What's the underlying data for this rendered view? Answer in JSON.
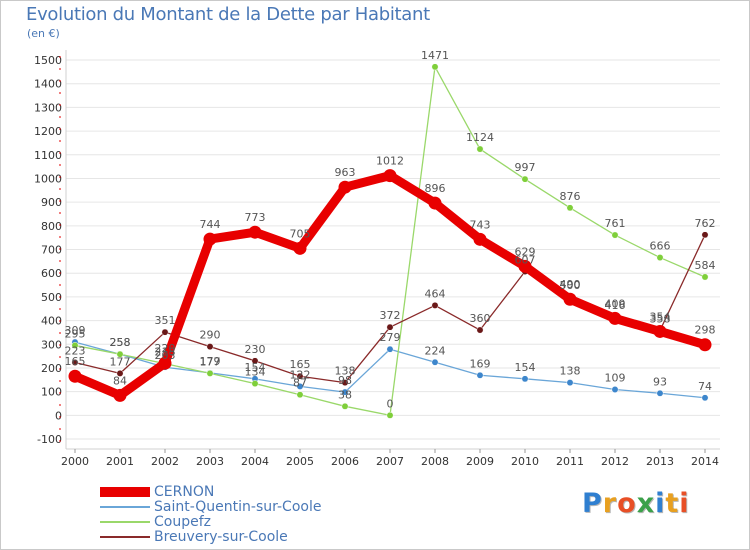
{
  "header": {
    "title": "Evolution du Montant de la Dette par Habitant",
    "unit": "(en €)"
  },
  "logo": {
    "text": "Proxiti",
    "letters": [
      "P",
      "r",
      "o",
      "x",
      "i",
      "t",
      "i"
    ],
    "letter_colors": [
      "#2f7fd0",
      "#e8a020",
      "#e84f26",
      "#3ba14a",
      "#2f7fd0",
      "#e8a020",
      "#e84f26"
    ]
  },
  "chart_data": {
    "type": "line",
    "title": "Evolution du Montant de la Dette par Habitant",
    "ylabel": "(en €)",
    "xlabel": "",
    "x": [
      2000,
      2001,
      2002,
      2003,
      2004,
      2005,
      2006,
      2007,
      2008,
      2009,
      2010,
      2011,
      2012,
      2013,
      2014
    ],
    "ylim": [
      -100,
      1500
    ],
    "yticks": [
      -100,
      0,
      100,
      200,
      300,
      400,
      500,
      600,
      700,
      800,
      900,
      1000,
      1100,
      1200,
      1300,
      1400,
      1500
    ],
    "grid": "horizontal",
    "legend_position": "bottom-left",
    "series": [
      {
        "name": "Saint-Quentin-sur-Coole",
        "color": "#6aa6d8",
        "point_color": "#3d86cc",
        "x": [
          2000,
          2001,
          2002,
          2003,
          2004,
          2005,
          2006,
          2007,
          2008,
          2009,
          2010,
          2011,
          2012,
          2013,
          2014
        ],
        "values": [
          309,
          258,
          203,
          179,
          154,
          122,
          98,
          279,
          224,
          169,
          154,
          138,
          109,
          93,
          74
        ],
        "labels": [
          "309",
          "258",
          "203",
          "179",
          "154",
          "122",
          "98",
          "279",
          "224",
          "169",
          "154",
          "138",
          "109",
          "93",
          "74"
        ]
      },
      {
        "name": "Coupefz",
        "color": "#9ad86a",
        "point_color": "#7fcf3a",
        "x": [
          2000,
          2001,
          2002,
          2003,
          2004,
          2005,
          2006,
          2007,
          2008,
          2009,
          2010,
          2011,
          2012,
          2013,
          2014
        ],
        "values": [
          295,
          258,
          218,
          177,
          134,
          87,
          38,
          0,
          1471,
          1124,
          997,
          876,
          761,
          666,
          584
        ],
        "labels": [
          "295",
          "258",
          "218",
          "177",
          "134",
          "87",
          "38",
          "0",
          "1471",
          "1124",
          "997",
          "876",
          "761",
          "666",
          "584"
        ]
      },
      {
        "name": "Breuvery-sur-Coole",
        "color": "#8a2a2a",
        "point_color": "#6a1818",
        "x": [
          2000,
          2001,
          2002,
          2003,
          2004,
          2005,
          2006,
          2007,
          2008,
          2009,
          2010,
          2011,
          2012,
          2013,
          2014
        ],
        "values": [
          223,
          177,
          351,
          290,
          230,
          165,
          138,
          372,
          464,
          360,
          607,
          500,
          416,
          358,
          762
        ],
        "labels": [
          "223",
          "177",
          "351",
          "290",
          "230",
          "165",
          "138",
          "372",
          "464",
          "360",
          "607",
          "500",
          "416",
          "358",
          "762"
        ]
      },
      {
        "name": "CERNON",
        "color": "#e80000",
        "point_color": "#e80000",
        "x": [
          2000,
          2001,
          2002,
          2003,
          2004,
          2005,
          2006,
          2007,
          2008,
          2009,
          2010,
          2011,
          2012,
          2013,
          2014
        ],
        "values": [
          165,
          84,
          220,
          744,
          773,
          705,
          963,
          1012,
          896,
          743,
          629,
          490,
          409,
          354,
          298
        ],
        "labels": [
          "165",
          "84",
          "220",
          "744",
          "773",
          "705",
          "963",
          "1012",
          "896",
          "743",
          "629",
          "490",
          "409",
          "354",
          "298"
        ]
      }
    ],
    "legend": [
      "CERNON",
      "Saint-Quentin-sur-Coole",
      "Coupefz",
      "Breuvery-sur-Coole"
    ]
  }
}
